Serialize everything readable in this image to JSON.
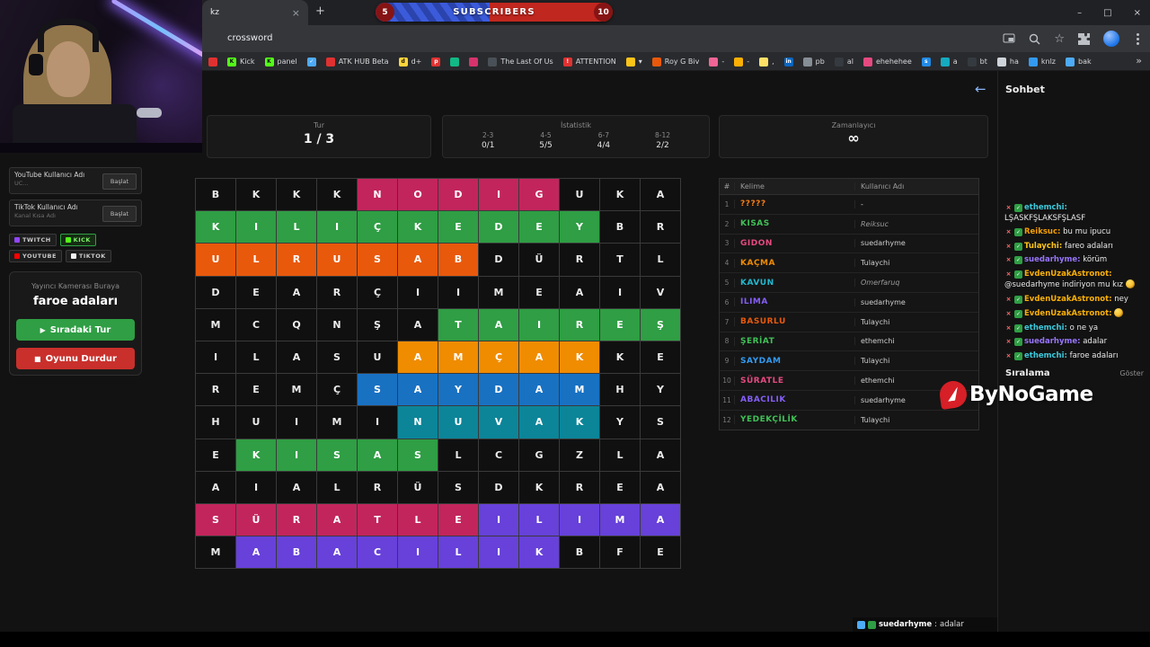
{
  "browser": {
    "tab_title": "kz",
    "tab_close": "×",
    "new_tab": "+",
    "url": "crossword",
    "window_controls": [
      "–",
      "□",
      "×"
    ],
    "toolbar_icons": [
      "pip-icon",
      "search-icon",
      "star-icon",
      "extensions-icon",
      "profile-avatar",
      "menu-icon"
    ],
    "bookmarks_overflow": "»"
  },
  "subscribers": {
    "current": "5",
    "goal": "10",
    "label": "SUBSCRIBERS"
  },
  "bookmarks": [
    {
      "color": "#e03131",
      "glyph": "",
      "label": ""
    },
    {
      "color": "#53fc18",
      "glyph": "K",
      "glyph_dark": true,
      "label": "Kick"
    },
    {
      "color": "#53fc18",
      "glyph": "K",
      "glyph_dark": true,
      "label": "panel"
    },
    {
      "color": "#4dabf7",
      "glyph": "✓",
      "label": ""
    },
    {
      "color": "#e03131",
      "glyph": "",
      "label": "ATK HUB Beta"
    },
    {
      "color": "#ffd43b",
      "glyph": "d",
      "glyph_dark": true,
      "label": "d+"
    },
    {
      "color": "#e03131",
      "glyph": "p",
      "label": ""
    },
    {
      "color": "#12b886",
      "glyph": "",
      "label": ""
    },
    {
      "color": "#d6336c",
      "glyph": "",
      "label": ""
    },
    {
      "color": "#495057",
      "glyph": "",
      "label": "The Last Of Us"
    },
    {
      "color": "#e03131",
      "glyph": "!",
      "label": "ATTENTION"
    },
    {
      "color": "#fcc419",
      "glyph": "",
      "label": "▾"
    },
    {
      "color": "#e8590c",
      "glyph": "",
      "label": "Roy G Biv"
    },
    {
      "color": "#f06595",
      "glyph": "",
      "label": "-"
    },
    {
      "color": "#fab005",
      "glyph": "",
      "label": "-"
    },
    {
      "color": "#ffe066",
      "glyph": "",
      "label": ","
    },
    {
      "color": "#0a66c2",
      "glyph": "in",
      "label": ""
    },
    {
      "color": "#868e96",
      "glyph": "",
      "label": "pb"
    },
    {
      "color": "#343a40",
      "glyph": "",
      "label": "al"
    },
    {
      "color": "#e64980",
      "glyph": "",
      "label": "ehehehee"
    },
    {
      "color": "#228be6",
      "glyph": "s",
      "label": ""
    },
    {
      "color": "#15aabf",
      "glyph": "",
      "label": "a"
    },
    {
      "color": "#343a40",
      "glyph": "",
      "label": "bt"
    },
    {
      "color": "#ced4da",
      "glyph": "",
      "label": "ha"
    },
    {
      "color": "#339af0",
      "glyph": "",
      "label": "knlz"
    },
    {
      "color": "#4dabf7",
      "glyph": "",
      "label": "bak"
    }
  ],
  "sidebar": {
    "youtube": {
      "label": "YouTube Kullanıcı Adı",
      "hint": "UC...",
      "button": "Başlat"
    },
    "tiktok": {
      "label": "TikTok Kullanıcı Adı",
      "hint": "Kanal Kısa Adı",
      "button": "Başlat"
    },
    "platforms": [
      {
        "name": "TWITCH",
        "color": "#9146ff"
      },
      {
        "name": "KICK",
        "color": "#53fc18"
      },
      {
        "name": "YOUTUBE",
        "color": "#ff0000"
      },
      {
        "name": "TIKTOK",
        "color": "#f2f2f2"
      }
    ],
    "camera_hint": "Yayıncı Kamerası Buraya",
    "game_title": "faroe adaları",
    "next_round_icon": "▶",
    "next_round": "Sıradaki Tur",
    "stop_icon": "■",
    "stop_game": "Oyunu Durdur"
  },
  "header": {
    "back_arrow": "←",
    "round_label": "Tur",
    "round_value": "1 / 3",
    "stats_label": "İstatistik",
    "stats": [
      {
        "range": "2-3",
        "value": "0/1"
      },
      {
        "range": "4-5",
        "value": "5/5"
      },
      {
        "range": "6-7",
        "value": "4/4"
      },
      {
        "range": "8-12",
        "value": "2/2"
      }
    ],
    "timer_label": "Zamanlayıcı",
    "timer_value": "∞"
  },
  "grid": {
    "palette": {
      "p": "#c2255c",
      "g": "#2f9e44",
      "o": "#f08c00",
      "O": "#e8590c",
      "b": "#1971c2",
      "t": "#0c8599",
      "v": "#6741d9"
    },
    "rows": [
      [
        "B",
        "K",
        "K",
        "K",
        "N",
        "O",
        "D",
        "I",
        "G",
        "U",
        "K",
        "A"
      ],
      [
        "K",
        "I",
        "L",
        "I",
        "Ç",
        "K",
        "E",
        "D",
        "E",
        "Y",
        "B",
        "R"
      ],
      [
        "U",
        "L",
        "R",
        "U",
        "S",
        "A",
        "B",
        "D",
        "Ü",
        "R",
        "T",
        "L"
      ],
      [
        "D",
        "E",
        "A",
        "R",
        "Ç",
        "I",
        "I",
        "M",
        "E",
        "A",
        "I",
        "V"
      ],
      [
        "M",
        "C",
        "Q",
        "N",
        "Ş",
        "A",
        "T",
        "A",
        "I",
        "R",
        "E",
        "Ş"
      ],
      [
        "I",
        "L",
        "A",
        "S",
        "U",
        "A",
        "M",
        "Ç",
        "A",
        "K",
        "K",
        "E"
      ],
      [
        "R",
        "E",
        "M",
        "Ç",
        "S",
        "A",
        "Y",
        "D",
        "A",
        "M",
        "H",
        "Y"
      ],
      [
        "H",
        "U",
        "I",
        "M",
        "I",
        "N",
        "U",
        "V",
        "A",
        "K",
        "Y",
        "S"
      ],
      [
        "E",
        "K",
        "I",
        "S",
        "A",
        "S",
        "L",
        "C",
        "G",
        "Z",
        "L",
        "A"
      ],
      [
        "A",
        "I",
        "A",
        "L",
        "R",
        "Ü",
        "S",
        "D",
        "K",
        "R",
        "E",
        "A"
      ],
      [
        "S",
        "Ü",
        "R",
        "A",
        "T",
        "L",
        "E",
        "I",
        "L",
        "I",
        "M",
        "A"
      ],
      [
        "M",
        "A",
        "B",
        "A",
        "C",
        "I",
        "L",
        "I",
        "K",
        "B",
        "F",
        "E"
      ]
    ],
    "colors": [
      [
        "",
        "",
        "",
        "",
        "p",
        "p",
        "p",
        "p",
        "p",
        "",
        "",
        ""
      ],
      [
        "g",
        "g",
        "g",
        "g",
        "g",
        "g",
        "g",
        "g",
        "g",
        "g",
        "",
        ""
      ],
      [
        "O",
        "O",
        "O",
        "O",
        "O",
        "O",
        "O",
        "",
        "",
        "",
        "",
        ""
      ],
      [
        "",
        "",
        "",
        "",
        "",
        "",
        "",
        "",
        "",
        "",
        "",
        ""
      ],
      [
        "",
        "",
        "",
        "",
        "",
        "",
        "g",
        "g",
        "g",
        "g",
        "g",
        "g"
      ],
      [
        "",
        "",
        "",
        "",
        "",
        "o",
        "o",
        "o",
        "o",
        "o",
        "",
        ""
      ],
      [
        "",
        "",
        "",
        "",
        "b",
        "b",
        "b",
        "b",
        "b",
        "b",
        "",
        ""
      ],
      [
        "",
        "",
        "",
        "",
        "",
        "t",
        "t",
        "t",
        "t",
        "t",
        "",
        ""
      ],
      [
        "",
        "g",
        "g",
        "g",
        "g",
        "g",
        "",
        "",
        "",
        "",
        "",
        ""
      ],
      [
        "",
        "",
        "",
        "",
        "",
        "",
        "",
        "",
        "",
        "",
        "",
        ""
      ],
      [
        "p",
        "p",
        "p",
        "p",
        "p",
        "p",
        "p",
        "v",
        "v",
        "v",
        "v",
        "v"
      ],
      [
        "",
        "v",
        "v",
        "v",
        "v",
        "v",
        "v",
        "v",
        "v",
        "",
        "",
        ""
      ]
    ]
  },
  "words": {
    "headers": {
      "num": "#",
      "word": "Kelime",
      "user": "Kullanıcı Adı"
    },
    "rows": [
      {
        "num": "1",
        "word": "?????",
        "color": "#fd7e14",
        "user": "-",
        "guest": false
      },
      {
        "num": "2",
        "word": "KISAS",
        "color": "#40c057",
        "user": "Reiksuc",
        "guest": true
      },
      {
        "num": "3",
        "word": "GIDON",
        "color": "#e64980",
        "user": "suedarhyme",
        "guest": false
      },
      {
        "num": "4",
        "word": "KAÇMA",
        "color": "#f08c00",
        "user": "Tulaychi",
        "guest": false
      },
      {
        "num": "5",
        "word": "KAVUN",
        "color": "#22b8cf",
        "user": "Omerfaruq",
        "guest": true
      },
      {
        "num": "6",
        "word": "ILIMA",
        "color": "#845ef7",
        "user": "suedarhyme",
        "guest": false
      },
      {
        "num": "7",
        "word": "BASURLU",
        "color": "#e8590c",
        "user": "Tulaychi",
        "guest": false
      },
      {
        "num": "8",
        "word": "ŞERİAT",
        "color": "#40c057",
        "user": "ethemchi",
        "guest": false
      },
      {
        "num": "9",
        "word": "SAYDAM",
        "color": "#339af0",
        "user": "Tulaychi",
        "guest": false
      },
      {
        "num": "10",
        "word": "SÜRATLE",
        "color": "#e64980",
        "user": "ethemchi",
        "guest": false
      },
      {
        "num": "11",
        "word": "ABACILIK",
        "color": "#845ef7",
        "user": "suedarhyme",
        "guest": false
      },
      {
        "num": "12",
        "word": "YEDEKÇİLİK",
        "color": "#40c057",
        "user": "Tulaychi",
        "guest": false
      }
    ]
  },
  "chat": {
    "title": "Sohbet",
    "badges": [
      "chat-delete-icon",
      "moderator-badge-icon"
    ],
    "messages": [
      {
        "user": "ethemchi",
        "color": "#3bc9db",
        "text": "LŞASKFŞLAKSFŞLASF"
      },
      {
        "user": "Reiksuc",
        "color": "#f59f00",
        "text": "bu mu ipucu"
      },
      {
        "user": "Tulaychi",
        "color": "#fcc419",
        "text": "fareo adaları"
      },
      {
        "user": "suedarhyme",
        "color": "#9775fa",
        "text": "körüm"
      },
      {
        "user": "EvdenUzakAstronot",
        "color": "#fab005",
        "text": "@suedarhyme indiriyon mu kız",
        "emote": "kiss-emote"
      },
      {
        "user": "EvdenUzakAstronot",
        "color": "#fab005",
        "text": "ney"
      },
      {
        "user": "EvdenUzakAstronot",
        "color": "#fab005",
        "text": "",
        "emote": "thinking-emote"
      },
      {
        "user": "ethemchi",
        "color": "#3bc9db",
        "text": "o ne ya"
      },
      {
        "user": "suedarhyme",
        "color": "#9775fa",
        "text": "adalar"
      },
      {
        "user": "ethemchi",
        "color": "#3bc9db",
        "text": "faroe adaları"
      }
    ],
    "ranking_label": "Sıralama",
    "show_button": "Göster"
  },
  "watermark": {
    "text": "ByNoGame"
  },
  "overlay": {
    "user": "suedarhyme",
    "separator": ":",
    "text": "adalar"
  }
}
